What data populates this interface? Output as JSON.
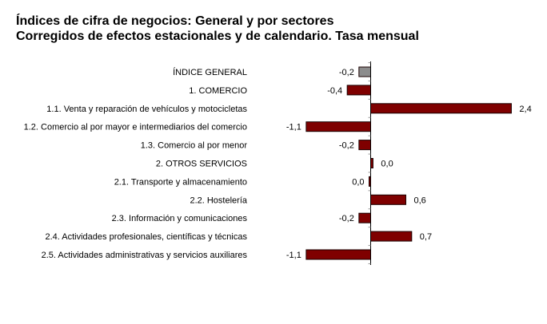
{
  "chart_data": {
    "type": "bar",
    "orientation": "horizontal",
    "title": "Índices de cifra de negocios: General y por sectores",
    "subtitle": "Corregidos de efectos estacionales y de calendario. Tasa mensual",
    "xlabel": "",
    "ylabel": "",
    "grid": false,
    "legend": "none",
    "xlim": [
      -1.1,
      2.4
    ],
    "categories": [
      "ÍNDICE GENERAL",
      "1. COMERCIO",
      "1.1. Venta y reparación de vehículos y motocicletas",
      "1.2. Comercio al por mayor e intermediarios del comercio",
      "1.3. Comercio al por menor",
      "2. OTROS SERVICIOS",
      "2.1. Transporte y almacenamiento",
      "2.2. Hostelería",
      "2.3. Información y comunicaciones",
      "2.4. Actividades profesionales, científicas y técnicas",
      "2.5. Actividades administrativas y servicios auxiliares"
    ],
    "values": [
      -0.2,
      -0.4,
      2.4,
      -1.1,
      -0.2,
      0.04,
      -0.02,
      0.6,
      -0.2,
      0.7,
      -1.1
    ],
    "value_labels": [
      "-0,2",
      "-0,4",
      "2,4",
      "-1,1",
      "-0,2",
      "0,0",
      "0,0",
      "0,6",
      "-0,2",
      "0,7",
      "-1,1"
    ],
    "colors": [
      "#8c8c8c",
      "#7f0000",
      "#7f0000",
      "#7f0000",
      "#7f0000",
      "#7f0000",
      "#7f0000",
      "#7f0000",
      "#7f0000",
      "#7f0000",
      "#7f0000"
    ],
    "bar_border_color": "#1a0000",
    "axis_color": "#000000"
  }
}
